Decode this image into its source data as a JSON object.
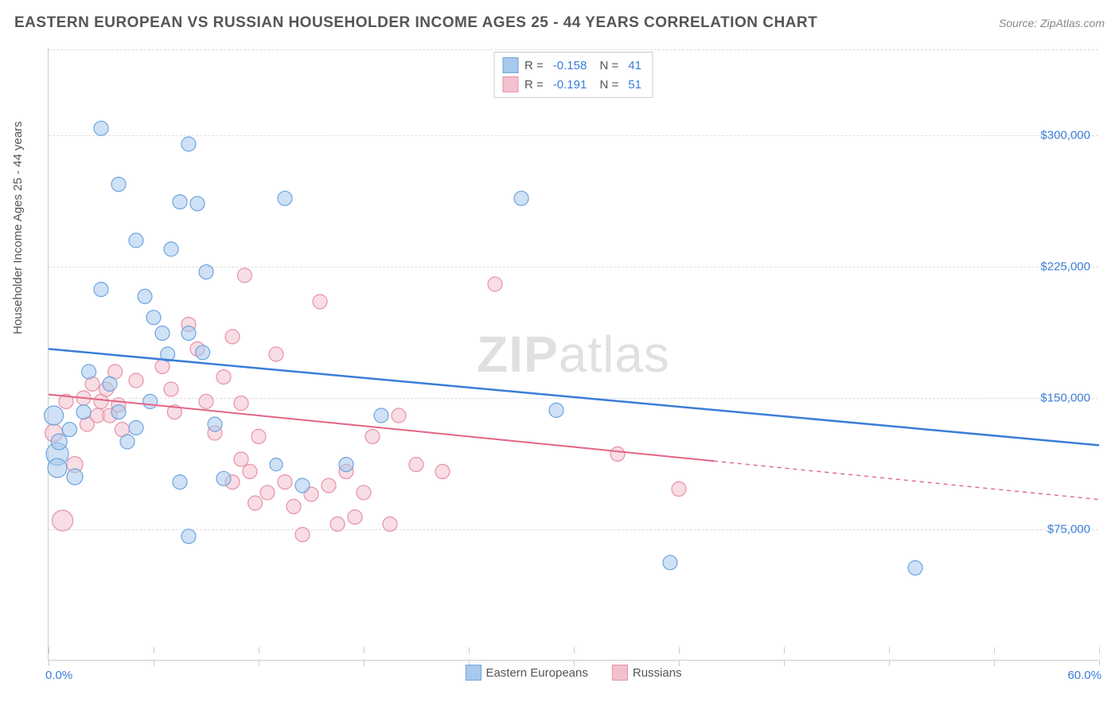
{
  "title": "EASTERN EUROPEAN VS RUSSIAN HOUSEHOLDER INCOME AGES 25 - 44 YEARS CORRELATION CHART",
  "source": "Source: ZipAtlas.com",
  "y_axis_label": "Householder Income Ages 25 - 44 years",
  "chart": {
    "type": "scatter",
    "xlim": [
      0,
      60
    ],
    "ylim": [
      0,
      350000
    ],
    "x_ticks": [
      0,
      6,
      12,
      18,
      24,
      30,
      36,
      42,
      48,
      54,
      60
    ],
    "y_ticks": [
      75000,
      150000,
      225000,
      300000
    ],
    "y_tick_labels": [
      "$75,000",
      "$150,000",
      "$225,000",
      "$300,000"
    ],
    "x_label_min": "0.0%",
    "x_label_max": "60.0%",
    "grid_color": "#dddddd",
    "axis_color": "#cccccc",
    "background_color": "#ffffff",
    "tick_label_color": "#3b7dd8",
    "marker_radius_base": 9,
    "series": [
      {
        "name": "Eastern Europeans",
        "fill": "#a8c8ec",
        "stroke": "#6ea4de",
        "fill_opacity": 0.55,
        "line_color": "#3b7dd8",
        "line_width": 2.5,
        "R": "-0.158",
        "N": "41",
        "trend": {
          "y_at_x0": 178000,
          "y_at_x60": 123000
        },
        "trend_dash_from_x": 60,
        "points": [
          [
            0.3,
            140000,
            12
          ],
          [
            0.5,
            118000,
            14
          ],
          [
            0.5,
            110000,
            12
          ],
          [
            0.6,
            125000,
            10
          ],
          [
            1.2,
            132000,
            9
          ],
          [
            1.5,
            105000,
            10
          ],
          [
            2.0,
            142000,
            9
          ],
          [
            2.3,
            165000,
            9
          ],
          [
            3.0,
            304000,
            9
          ],
          [
            3.0,
            212000,
            9
          ],
          [
            3.5,
            158000,
            9
          ],
          [
            4.0,
            272000,
            9
          ],
          [
            4.0,
            142000,
            9
          ],
          [
            4.5,
            125000,
            9
          ],
          [
            5.0,
            133000,
            9
          ],
          [
            5.0,
            240000,
            9
          ],
          [
            5.5,
            208000,
            9
          ],
          [
            5.8,
            148000,
            9
          ],
          [
            6.0,
            196000,
            9
          ],
          [
            6.5,
            187000,
            9
          ],
          [
            6.8,
            175000,
            9
          ],
          [
            7.0,
            235000,
            9
          ],
          [
            7.5,
            262000,
            9
          ],
          [
            7.5,
            102000,
            9
          ],
          [
            8.0,
            295000,
            9
          ],
          [
            8.0,
            187000,
            9
          ],
          [
            8.0,
            71000,
            9
          ],
          [
            8.5,
            261000,
            9
          ],
          [
            8.8,
            176000,
            9
          ],
          [
            9.0,
            222000,
            9
          ],
          [
            9.5,
            135000,
            9
          ],
          [
            10.0,
            104000,
            9
          ],
          [
            13.5,
            264000,
            9
          ],
          [
            13.0,
            112000,
            8
          ],
          [
            14.5,
            100000,
            9
          ],
          [
            17.0,
            112000,
            9
          ],
          [
            19.0,
            140000,
            9
          ],
          [
            27.0,
            264000,
            9
          ],
          [
            29.0,
            143000,
            9
          ],
          [
            35.5,
            56000,
            9
          ],
          [
            49.5,
            53000,
            9
          ]
        ]
      },
      {
        "name": "Russians",
        "fill": "#f3c1cd",
        "stroke": "#e791a7",
        "fill_opacity": 0.55,
        "line_color": "#e26584",
        "line_width": 2,
        "R": "-0.191",
        "N": "51",
        "trend": {
          "y_at_x0": 152000,
          "y_at_x60": 92000
        },
        "trend_dash_from_x": 38,
        "points": [
          [
            0.3,
            130000,
            11
          ],
          [
            0.8,
            80000,
            13
          ],
          [
            1.0,
            148000,
            9
          ],
          [
            1.5,
            112000,
            10
          ],
          [
            2.0,
            150000,
            9
          ],
          [
            2.2,
            135000,
            9
          ],
          [
            2.5,
            158000,
            9
          ],
          [
            2.8,
            140000,
            9
          ],
          [
            3.0,
            148000,
            9
          ],
          [
            3.3,
            155000,
            9
          ],
          [
            3.5,
            140000,
            9
          ],
          [
            3.8,
            165000,
            9
          ],
          [
            4.0,
            146000,
            9
          ],
          [
            4.2,
            132000,
            9
          ],
          [
            5.0,
            160000,
            9
          ],
          [
            6.5,
            168000,
            9
          ],
          [
            7.0,
            155000,
            9
          ],
          [
            7.2,
            142000,
            9
          ],
          [
            8.0,
            192000,
            9
          ],
          [
            8.5,
            178000,
            9
          ],
          [
            9.0,
            148000,
            9
          ],
          [
            9.5,
            130000,
            9
          ],
          [
            10.0,
            162000,
            9
          ],
          [
            10.5,
            185000,
            9
          ],
          [
            10.5,
            102000,
            9
          ],
          [
            11.0,
            147000,
            9
          ],
          [
            11.0,
            115000,
            9
          ],
          [
            11.2,
            220000,
            9
          ],
          [
            11.5,
            108000,
            9
          ],
          [
            11.8,
            90000,
            9
          ],
          [
            12.0,
            128000,
            9
          ],
          [
            12.5,
            96000,
            9
          ],
          [
            13.0,
            175000,
            9
          ],
          [
            13.5,
            102000,
            9
          ],
          [
            14.0,
            88000,
            9
          ],
          [
            14.5,
            72000,
            9
          ],
          [
            15.0,
            95000,
            9
          ],
          [
            15.5,
            205000,
            9
          ],
          [
            16.0,
            100000,
            9
          ],
          [
            16.5,
            78000,
            9
          ],
          [
            17.0,
            108000,
            9
          ],
          [
            17.5,
            82000,
            9
          ],
          [
            18.0,
            96000,
            9
          ],
          [
            18.5,
            128000,
            9
          ],
          [
            19.5,
            78000,
            9
          ],
          [
            20.0,
            140000,
            9
          ],
          [
            21.0,
            112000,
            9
          ],
          [
            22.5,
            108000,
            9
          ],
          [
            25.5,
            215000,
            9
          ],
          [
            32.5,
            118000,
            9
          ],
          [
            36.0,
            98000,
            9
          ]
        ]
      }
    ]
  },
  "legend_bottom": [
    {
      "label": "Eastern Europeans",
      "fill": "#a8c8ec",
      "stroke": "#6ea4de"
    },
    {
      "label": "Russians",
      "fill": "#f3c1cd",
      "stroke": "#e791a7"
    }
  ],
  "watermark": {
    "part1": "ZIP",
    "part2": "atlas"
  }
}
